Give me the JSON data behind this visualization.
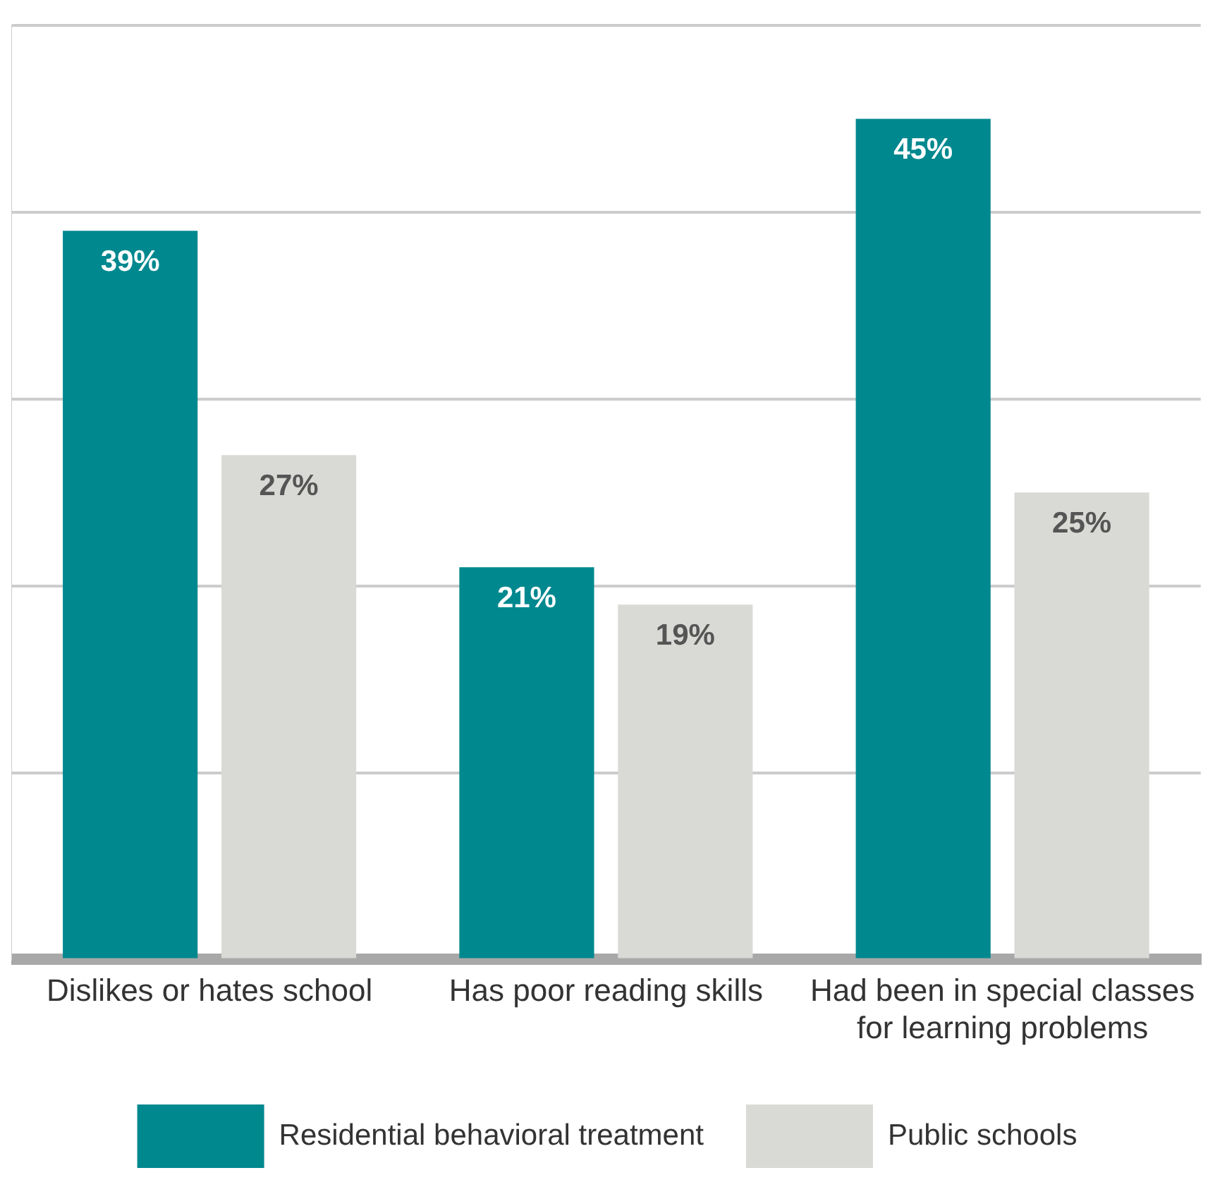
{
  "chart_data": {
    "type": "bar",
    "categories": [
      "Dislikes or hates school",
      "Has poor reading skills",
      "Had been in special classes for learning problems"
    ],
    "series": [
      {
        "name": "Residential behavioral treatment",
        "color": "#00888f",
        "values": [
          39,
          21,
          45
        ],
        "value_labels": [
          "39%",
          "21%",
          "45%"
        ]
      },
      {
        "name": "Public schools",
        "color": "#d9d9d6",
        "values": [
          27,
          19,
          25
        ],
        "value_labels": [
          "27%",
          "19%",
          "25%"
        ]
      }
    ],
    "ylim": [
      0,
      50
    ],
    "yticks": [
      {
        "value": 0,
        "label": null
      },
      {
        "value": 10,
        "label": null
      },
      {
        "value": 20,
        "label": null
      },
      {
        "value": 30,
        "label": null
      },
      {
        "value": 40,
        "label": null
      },
      {
        "value": 50,
        "label": null
      }
    ],
    "tick_labels": "x",
    "grid": "y",
    "legend": "bottom"
  }
}
